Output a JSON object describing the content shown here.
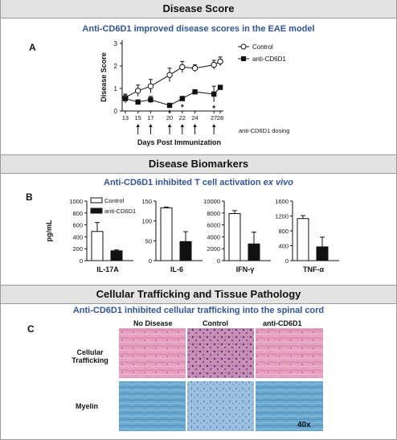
{
  "sections": {
    "disease_score": "Disease Score",
    "biomarkers": "Disease Biomarkers",
    "trafficking": "Cellular Trafficking and Tissue Pathology"
  },
  "panel_a": {
    "letter": "A",
    "subtitle": "Anti-CD6D1 improved disease scores in the EAE model",
    "dosing_note": "anti-CD6D1 dosing",
    "star": "*"
  },
  "panel_b": {
    "letter": "B",
    "subtitle_plain": "Anti-CD6D1 inhibited T cell activation ",
    "subtitle_italic": "ex vivo"
  },
  "panel_c": {
    "letter": "C",
    "subtitle": "Anti-CD6D1 inhibited cellular trafficking into the spinal cord",
    "col_no_disease": "No Disease",
    "col_control": "Control",
    "col_anti": "anti-CD6D1",
    "row_trafficking": "Cellular\nTrafficking",
    "row_myelin": "Myelin",
    "magnification": "40x"
  },
  "colors": {
    "subtitle": "#2f5597",
    "header_bg": "#e3e3e3",
    "anti_marker": "#111111",
    "control_marker": "#ffffff"
  },
  "chart_data": [
    {
      "type": "line",
      "xlabel": "Days Post  Immunization",
      "ylabel": "Disease Score",
      "x": [
        13,
        15,
        17,
        20,
        22,
        24,
        27,
        28
      ],
      "ylim": [
        0,
        3
      ],
      "yticks": [
        0,
        1,
        2,
        3
      ],
      "series": [
        {
          "name": "Control",
          "values": [
            0.6,
            0.9,
            1.1,
            1.6,
            1.95,
            1.9,
            2.05,
            2.2
          ],
          "errors": [
            0.15,
            0.25,
            0.3,
            0.3,
            0.25,
            0.15,
            0.2,
            0.2
          ],
          "marker": "open-circle"
        },
        {
          "name": "anti-CD6D1",
          "values": [
            0.55,
            0.4,
            0.5,
            0.25,
            0.55,
            0.85,
            0.75,
            1.05
          ],
          "errors": [
            0.2,
            0.05,
            0.15,
            0.05,
            0.1,
            0.1,
            0.35,
            0.05
          ],
          "marker": "filled-square"
        }
      ],
      "significance": [
        20,
        22,
        27
      ],
      "dosing_days": [
        15,
        17,
        20,
        22,
        24,
        27
      ]
    },
    {
      "type": "bar",
      "title": "IL-17A",
      "ylabel": "pg/mL",
      "categories": [
        "Control",
        "anti-CD6D1"
      ],
      "values": [
        490,
        165
      ],
      "errors": [
        150,
        15
      ],
      "ylim": [
        0,
        1000
      ],
      "yticks": [
        0,
        200,
        400,
        600,
        800,
        1000
      ],
      "legend": [
        "Control",
        "anti-CD6D1"
      ]
    },
    {
      "type": "bar",
      "title": "IL-6",
      "categories": [
        "Control",
        "anti-CD6D1"
      ],
      "values": [
        133,
        48
      ],
      "errors": [
        2,
        25
      ],
      "ylim": [
        0,
        150
      ],
      "yticks": [
        0,
        50,
        100,
        150
      ]
    },
    {
      "type": "bar",
      "title": "IFN-γ",
      "categories": [
        "Control",
        "anti-CD6D1"
      ],
      "values": [
        7900,
        2800
      ],
      "errors": [
        500,
        2000
      ],
      "ylim": [
        0,
        10000
      ],
      "yticks": [
        0,
        2000,
        4000,
        6000,
        8000,
        10000
      ]
    },
    {
      "type": "bar",
      "title": "TNF-α",
      "categories": [
        "Control",
        "anti-CD6D1"
      ],
      "values": [
        1130,
        370
      ],
      "errors": [
        80,
        260
      ],
      "ylim": [
        0,
        1600
      ],
      "yticks": [
        0,
        400,
        800,
        1200,
        1600
      ]
    }
  ]
}
